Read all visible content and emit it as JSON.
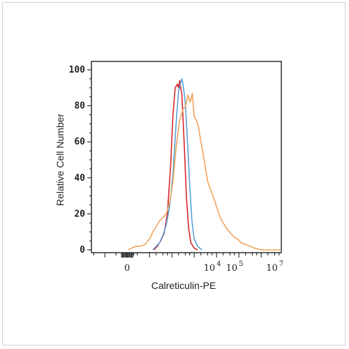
{
  "chart_data": {
    "type": "line",
    "title": "",
    "xlabel": "Calreticulin-PE",
    "ylabel": "Relative Cell Number",
    "x_scale": "log (biexponential)",
    "ylim": [
      0,
      100
    ],
    "y_ticks": [
      {
        "value": 0,
        "label": "0"
      },
      {
        "value": 20,
        "label": "20"
      },
      {
        "value": 40,
        "label": "40"
      },
      {
        "value": 60,
        "label": "60"
      },
      {
        "value": 80,
        "label": "80"
      },
      {
        "value": 100,
        "label": "100"
      }
    ],
    "x_ticks": [
      {
        "value": "0",
        "base": "0",
        "exp": ""
      },
      {
        "value": "1e4",
        "base": "10",
        "exp": "4"
      },
      {
        "value": "1e5",
        "base": "10",
        "exp": "5"
      },
      {
        "value": "1e7",
        "base": "10",
        "exp": "7"
      }
    ],
    "grid": false,
    "legend": "none",
    "series": [
      {
        "color": "#d9262b",
        "x": [
          1.2,
          1.35,
          1.5,
          1.65,
          1.8,
          1.95,
          2.05,
          2.15,
          2.25,
          2.3,
          2.35,
          2.45,
          2.55,
          2.65,
          2.75,
          2.85,
          3.0,
          3.15
        ],
        "y": [
          0,
          2,
          5,
          9,
          20,
          48,
          75,
          90,
          92,
          90,
          94,
          86,
          60,
          30,
          12,
          4,
          1,
          0
        ]
      },
      {
        "color": "#5aa0d6",
        "x": [
          1.15,
          1.3,
          1.45,
          1.6,
          1.75,
          1.9,
          2.05,
          2.2,
          2.3,
          2.4,
          2.45,
          2.5,
          2.6,
          2.7,
          2.8,
          2.9,
          3.0,
          3.15,
          3.35
        ],
        "y": [
          0,
          2,
          4,
          8,
          14,
          24,
          42,
          72,
          88,
          93,
          95,
          92,
          82,
          60,
          36,
          16,
          6,
          2,
          0
        ]
      },
      {
        "color": "#f1a35c",
        "x": [
          0.05,
          0.2,
          0.4,
          0.6,
          0.8,
          1.0,
          1.15,
          1.3,
          1.45,
          1.6,
          1.75,
          1.9,
          2.05,
          2.2,
          2.35,
          2.5,
          2.62,
          2.72,
          2.82,
          2.92,
          3.0,
          3.1,
          3.2,
          3.3,
          3.45,
          3.6,
          3.75,
          3.9,
          4.05,
          4.2,
          4.35,
          4.5,
          4.65,
          4.8,
          4.95,
          5.1,
          5.3,
          5.5,
          5.7,
          6.0,
          6.3,
          6.6,
          6.85
        ],
        "y": [
          0,
          1,
          2,
          2,
          3,
          6,
          10,
          13,
          16,
          18,
          20,
          26,
          38,
          58,
          72,
          78,
          80,
          86,
          82,
          87,
          74,
          72,
          68,
          60,
          50,
          38,
          33,
          28,
          22,
          17,
          14,
          11,
          9,
          7,
          6,
          4,
          3,
          2,
          1,
          0,
          0,
          0,
          0
        ]
      }
    ]
  }
}
